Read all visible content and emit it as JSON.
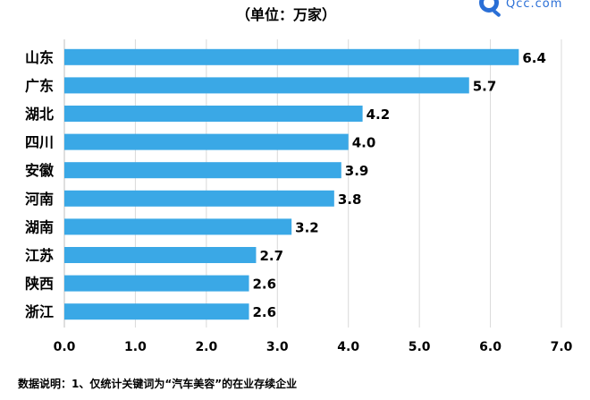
{
  "header": {
    "subtitle": "（单位：万家）",
    "logo_text": "Qcc.com",
    "logo_icon": "magnifier-logo-icon"
  },
  "chart_data": {
    "type": "bar",
    "orientation": "horizontal",
    "categories": [
      "山东",
      "广东",
      "湖北",
      "四川",
      "安徽",
      "河南",
      "湖南",
      "江苏",
      "陕西",
      "浙江"
    ],
    "values": [
      6.4,
      5.7,
      4.2,
      4.0,
      3.9,
      3.8,
      3.2,
      2.7,
      2.6,
      2.6
    ],
    "value_labels": [
      "6.4",
      "5.7",
      "4.2",
      "4.0",
      "3.9",
      "3.8",
      "3.2",
      "2.7",
      "2.6",
      "2.6"
    ],
    "xlim": [
      0,
      7
    ],
    "x_ticks": [
      "0.0",
      "1.0",
      "2.0",
      "3.0",
      "4.0",
      "5.0",
      "6.0",
      "7.0"
    ],
    "grid": "vertical",
    "bar_color": "#3aa8e6"
  },
  "footnote": "数据说明：1、仅统计关键词为“汽车美容”的在业存续企业"
}
